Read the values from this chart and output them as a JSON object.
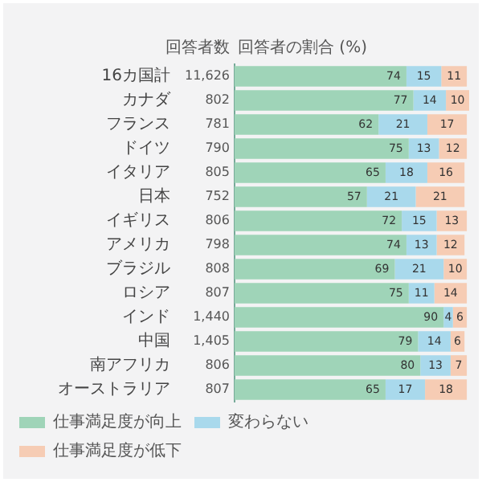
{
  "chart_data": {
    "type": "bar",
    "orientation": "horizontal",
    "stacked": true,
    "data_labels": true,
    "legend": "bottom left",
    "categories": [
      "16カ国計",
      "カナダ",
      "フランス",
      "ドイツ",
      "イタリア",
      "日本",
      "イギリス",
      "アメリカ",
      "ブラジル",
      "ロシア",
      "インド",
      "中国",
      "南アフリカ",
      "オーストラリア"
    ],
    "series": [
      {
        "name": "仕事満足度が向上",
        "color": "#9fd4b8",
        "values": [
          74,
          77,
          62,
          75,
          65,
          57,
          72,
          74,
          69,
          75,
          90,
          79,
          80,
          65
        ]
      },
      {
        "name": "変わらない",
        "color": "#a9d9ec",
        "values": [
          15,
          14,
          21,
          13,
          18,
          21,
          15,
          13,
          21,
          11,
          4,
          14,
          13,
          17
        ]
      },
      {
        "name": "仕事満足度が低下",
        "color": "#f6ccb4",
        "values": [
          11,
          10,
          17,
          12,
          16,
          21,
          13,
          12,
          10,
          14,
          6,
          6,
          7,
          18
        ]
      }
    ],
    "annotations": [
      "回答者数",
      "回答者の割合 (%)",
      "11,626",
      "802",
      "781",
      "790",
      "805",
      "752",
      "806",
      "798",
      "808",
      "807",
      "1,440",
      "1,405",
      "806",
      "807"
    ]
  }
}
